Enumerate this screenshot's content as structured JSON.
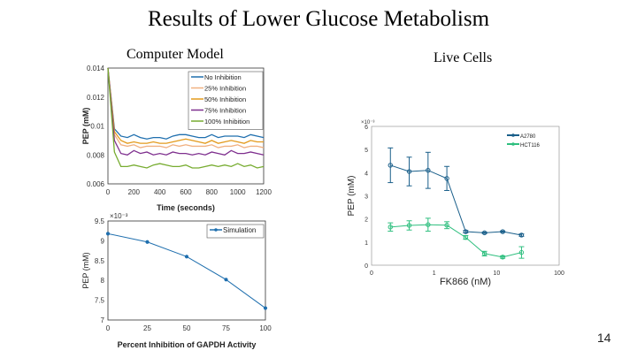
{
  "slide": {
    "title": "Results of Lower Glucose Metabolism",
    "left_heading": "Computer Model",
    "right_heading": "Live Cells",
    "page_number": "14"
  },
  "chart_data": [
    {
      "type": "line",
      "xlabel": "Time (seconds)",
      "ylabel": "PEP (mM)",
      "xlim": [
        0,
        1200
      ],
      "ylim": [
        0.006,
        0.014
      ],
      "xticks": [
        "0",
        "200",
        "400",
        "600",
        "800",
        "1000",
        "1200"
      ],
      "yticks": [
        "0.006",
        "0.008",
        "0.01",
        "0.012",
        "0.014"
      ],
      "legend": "top-right",
      "x": [
        0,
        50,
        100,
        150,
        200,
        250,
        300,
        350,
        400,
        450,
        500,
        550,
        600,
        650,
        700,
        750,
        800,
        850,
        900,
        950,
        1000,
        1050,
        1100,
        1150,
        1200
      ],
      "series": [
        {
          "name": "No Inhibition",
          "color": "#1f6fae",
          "values": [
            0.014,
            0.0098,
            0.0093,
            0.0092,
            0.0094,
            0.0092,
            0.0091,
            0.0092,
            0.0092,
            0.0091,
            0.0093,
            0.0094,
            0.0094,
            0.0093,
            0.0092,
            0.0092,
            0.0094,
            0.0092,
            0.0093,
            0.0093,
            0.0093,
            0.0092,
            0.0094,
            0.0093,
            0.0092
          ]
        },
        {
          "name": "25% Inhibition",
          "color": "#f0b080",
          "values": [
            0.014,
            0.0094,
            0.0087,
            0.0086,
            0.0087,
            0.0085,
            0.0086,
            0.0086,
            0.0086,
            0.0085,
            0.0087,
            0.0086,
            0.0087,
            0.0086,
            0.0086,
            0.0086,
            0.0087,
            0.0085,
            0.0086,
            0.0086,
            0.0087,
            0.0085,
            0.0086,
            0.0086,
            0.0085
          ]
        },
        {
          "name": "50% Inhibition",
          "color": "#e39a1c",
          "values": [
            0.014,
            0.0096,
            0.009,
            0.0088,
            0.0089,
            0.0088,
            0.0088,
            0.0089,
            0.0088,
            0.0088,
            0.0089,
            0.009,
            0.0091,
            0.009,
            0.0089,
            0.0088,
            0.009,
            0.0088,
            0.0089,
            0.009,
            0.0089,
            0.0088,
            0.009,
            0.0089,
            0.0089
          ]
        },
        {
          "name": "75% Inhibition",
          "color": "#7e2f8e",
          "values": [
            0.014,
            0.009,
            0.0081,
            0.008,
            0.0083,
            0.0081,
            0.0082,
            0.008,
            0.0081,
            0.008,
            0.0082,
            0.0081,
            0.0081,
            0.008,
            0.0081,
            0.008,
            0.0082,
            0.0081,
            0.008,
            0.0083,
            0.0081,
            0.0081,
            0.0082,
            0.0081,
            0.008
          ]
        },
        {
          "name": "100% Inhibition",
          "color": "#77ac30",
          "values": [
            0.014,
            0.0082,
            0.0072,
            0.0072,
            0.0073,
            0.0072,
            0.0071,
            0.0073,
            0.0074,
            0.0073,
            0.0072,
            0.0072,
            0.0073,
            0.0071,
            0.0071,
            0.0072,
            0.0073,
            0.0072,
            0.0073,
            0.0072,
            0.0074,
            0.0072,
            0.0073,
            0.0071,
            0.0072
          ]
        }
      ]
    },
    {
      "type": "line",
      "xlabel": "Percent Inhibition of GAPDH Activity",
      "ylabel": "PEP  (mM)",
      "exponent": "×10⁻³",
      "xlim": [
        0,
        100
      ],
      "ylim": [
        7,
        9.5
      ],
      "xticks": [
        "0",
        "25",
        "50",
        "75",
        "100"
      ],
      "yticks": [
        "7",
        "7.5",
        "8",
        "8.5",
        "9",
        "9.5"
      ],
      "legend": "top-right",
      "x": [
        0,
        25,
        50,
        75,
        100
      ],
      "series": [
        {
          "name": "Simulation",
          "color": "#1f6fae",
          "values": [
            9.18,
            8.97,
            8.6,
            8.02,
            7.3
          ]
        }
      ]
    },
    {
      "type": "line",
      "xlabel": "FK866 (nM)",
      "ylabel": "PEP (mM)",
      "exponent": "×10⁻³",
      "xscale": "log",
      "xlim": [
        0.1,
        100
      ],
      "ylim": [
        0,
        6
      ],
      "xticks": [
        "0",
        "1",
        "10",
        "100"
      ],
      "yticks": [
        "0",
        "1",
        "2",
        "3",
        "4",
        "5",
        "6"
      ],
      "legend": "top-right",
      "x": [
        0.2,
        0.4,
        0.8,
        1.6,
        3.2,
        6.4,
        12.5,
        25
      ],
      "series": [
        {
          "name": "A2780",
          "color": "#1a5f8a",
          "values": [
            4.32,
            4.05,
            4.1,
            3.75,
            1.45,
            1.4,
            1.45,
            1.3
          ],
          "errors": [
            0.75,
            0.62,
            0.78,
            0.52,
            0.05,
            0.03,
            0.03,
            0.05
          ]
        },
        {
          "name": "HCT116",
          "color": "#2fbf7f",
          "values": [
            1.65,
            1.72,
            1.75,
            1.73,
            1.2,
            0.5,
            0.35,
            0.55
          ],
          "errors": [
            0.18,
            0.2,
            0.28,
            0.15,
            0.08,
            0.1,
            0.05,
            0.25
          ]
        }
      ]
    }
  ]
}
